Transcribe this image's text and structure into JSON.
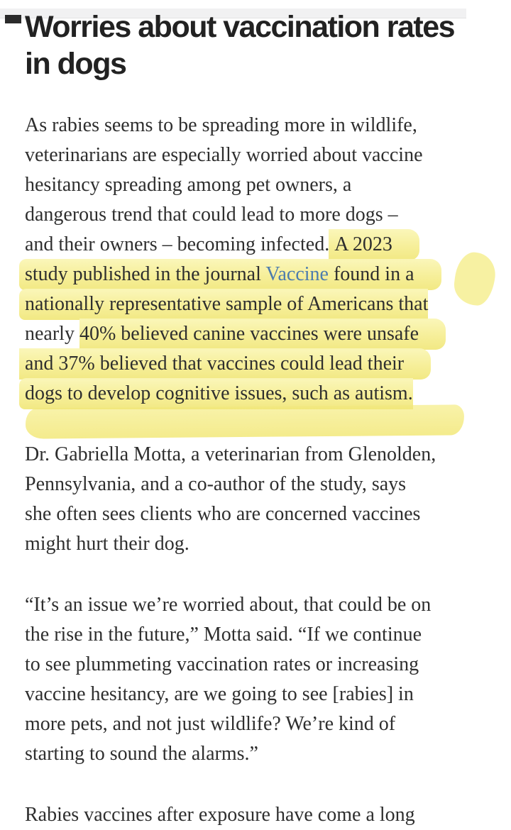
{
  "colors": {
    "background": "#ffffff",
    "top_strip": "#f1f1f2",
    "heading_text": "#222222",
    "body_text": "#2e2e2e",
    "link_blue": "#4c7cae",
    "highlight_yellow": "#f6ee94"
  },
  "heading": {
    "lines": [
      "Worries about vaccination rates",
      "in dogs"
    ]
  },
  "article": {
    "paragraphs": [
      {
        "lines": [
          {
            "segments": [
              {
                "t": "As rabies seems to be spreading more in wildlife,"
              }
            ]
          },
          {
            "segments": [
              {
                "t": "veterinarians are especially worried about vaccine"
              }
            ]
          },
          {
            "segments": [
              {
                "t": "hesitancy spreading among pet owners, a"
              }
            ]
          },
          {
            "segments": [
              {
                "t": "dangerous trend that could lead to more dogs –"
              }
            ]
          },
          {
            "segments": [
              {
                "t": "and their owners – becoming infected. "
              },
              {
                "t": "A 2023",
                "hl": true,
                "lead": true,
                "ext": true
              }
            ]
          },
          {
            "segments": [
              {
                "t": "study published in the journal ",
                "hl": true,
                "lead": true
              },
              {
                "t": "Vaccine",
                "hl": true,
                "link": true
              },
              {
                "t": " found in a",
                "hl": true,
                "ext": true
              }
            ]
          },
          {
            "segments": [
              {
                "t": "nationally representative sample of Americans that",
                "hl": true,
                "lead": true
              }
            ]
          },
          {
            "segments": [
              {
                "t": "nearly "
              },
              {
                "t": "40% believed canine vaccines were unsafe",
                "hl": true,
                "ext": true
              }
            ]
          },
          {
            "segments": [
              {
                "t": "and 37% believed that vaccines could lead their",
                "hl": true,
                "lead": true,
                "ext": true
              }
            ]
          },
          {
            "segments": [
              {
                "t": "dogs to develop cognitive issues, such as autism.",
                "hl": true,
                "lead": true
              }
            ]
          }
        ]
      },
      {
        "lines": [
          {
            "segments": [
              {
                "t": "Dr. Gabriella Motta, a veterinarian from Glenolden,"
              }
            ]
          },
          {
            "segments": [
              {
                "t": "Pennsylvania, and a co-author of the study, says"
              }
            ]
          },
          {
            "segments": [
              {
                "t": "she often sees clients who are concerned vaccines"
              }
            ]
          },
          {
            "segments": [
              {
                "t": "might hurt their dog."
              }
            ]
          }
        ]
      },
      {
        "lines": [
          {
            "segments": [
              {
                "t": "“It’s an issue we’re worried about, that could be on"
              }
            ]
          },
          {
            "segments": [
              {
                "t": "the rise in the future,” Motta said. “If we continue"
              }
            ]
          },
          {
            "segments": [
              {
                "t": "to see plummeting vaccination rates or increasing"
              }
            ]
          },
          {
            "segments": [
              {
                "t": "vaccine hesitancy, are we going to see [rabies] in"
              }
            ]
          },
          {
            "segments": [
              {
                "t": "more pets, and not just wildlife? We’re kind of"
              }
            ]
          },
          {
            "segments": [
              {
                "t": "starting to sound the alarms.”"
              }
            ]
          }
        ]
      },
      {
        "lines": [
          {
            "segments": [
              {
                "t": "Rabies vaccines after exposure have come a long"
              }
            ]
          }
        ]
      }
    ]
  }
}
